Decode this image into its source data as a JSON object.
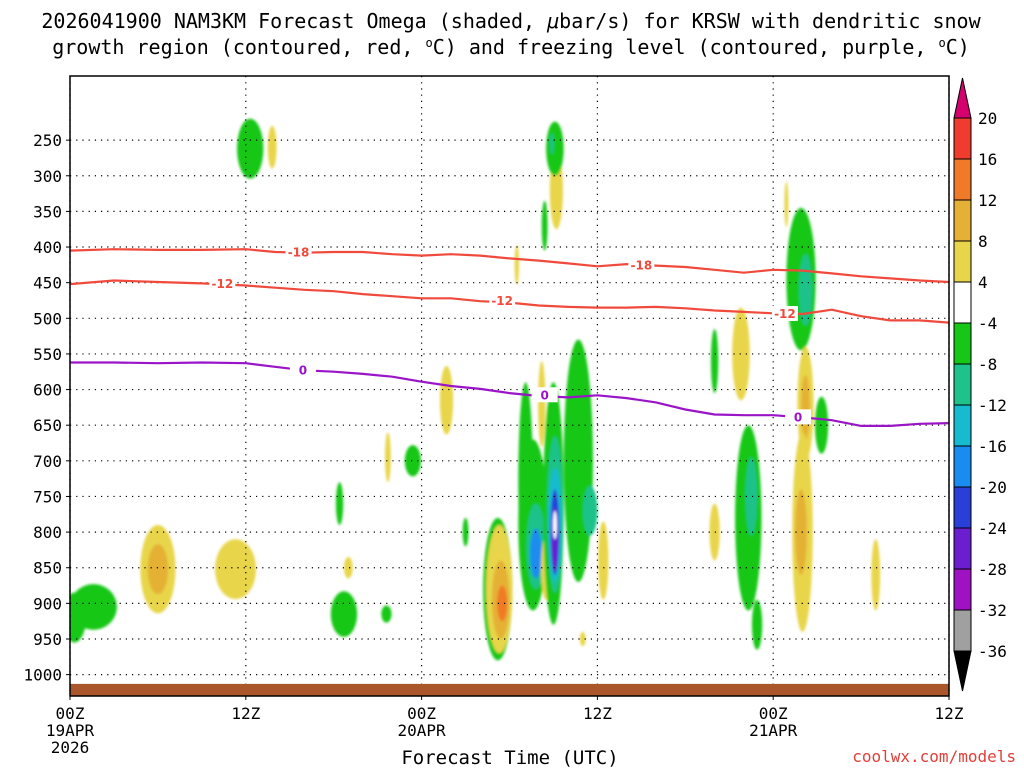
{
  "chart_data": {
    "type": "heatmap",
    "title": "2026041900 NAM3KM Forecast Omega (shaded, μbar/s) for KRSW with dendritic snow growth region (contoured, red, °C) and freezing level (contoured, purple, °C)",
    "title_lines": [
      [
        "2026041900 NAM3KM Forecast Omega (shaded, ",
        "μ",
        "bar/s) for KRSW with dendritic snow"
      ],
      [
        "growth region (contoured, red, ",
        "o",
        "C) and freezing level (contoured, purple, ",
        "o",
        "C)"
      ]
    ],
    "xlabel": "Forecast Time (UTC)",
    "ylabel": "",
    "xlim": [
      0,
      60
    ],
    "ylim": [
      1030,
      160
    ],
    "x_ticks": [
      {
        "hour": 0,
        "lines": [
          "00Z",
          "19APR",
          "2026"
        ]
      },
      {
        "hour": 12,
        "lines": [
          "12Z"
        ]
      },
      {
        "hour": 24,
        "lines": [
          "00Z",
          "20APR"
        ]
      },
      {
        "hour": 36,
        "lines": [
          "12Z"
        ]
      },
      {
        "hour": 48,
        "lines": [
          "00Z",
          "21APR"
        ]
      },
      {
        "hour": 60,
        "lines": [
          "12Z"
        ]
      }
    ],
    "y_ticks": [
      250,
      300,
      350,
      400,
      450,
      500,
      550,
      600,
      650,
      700,
      750,
      800,
      850,
      900,
      950,
      1000
    ],
    "grid": true,
    "ground_pressure": 1013,
    "colorbar": {
      "levels": [
        20,
        16,
        12,
        8,
        4,
        -4,
        -8,
        -12,
        -16,
        -20,
        -24,
        -28,
        -32,
        -36
      ],
      "colors": [
        "#d3006e",
        "#f03c2e",
        "#f07a28",
        "#e4b136",
        "#e8d54a",
        "#ffffff",
        "#16c718",
        "#1ec28a",
        "#16bbd0",
        "#1a8cf0",
        "#2a3fd8",
        "#6a1ed0",
        "#9e12c4",
        "#a0a0a0",
        "#000000"
      ]
    },
    "series": [
      {
        "name": "-18",
        "color": "#f04a3c",
        "label": "-18",
        "x": [
          0,
          3,
          6,
          9,
          12,
          14,
          16,
          18,
          20,
          22,
          24,
          26,
          28,
          30,
          32,
          34,
          36,
          38,
          40,
          42,
          44,
          46,
          48,
          50,
          52,
          54,
          56,
          58,
          60
        ],
        "y": [
          405,
          403,
          404,
          404,
          403,
          407,
          408,
          407,
          407,
          410,
          412,
          410,
          412,
          416,
          419,
          423,
          427,
          424,
          426,
          428,
          432,
          436,
          432,
          433,
          437,
          441,
          444,
          447,
          449
        ],
        "label_at": [
          [
            15.6,
            408
          ],
          [
            39.0,
            426
          ]
        ]
      },
      {
        "name": "-12",
        "color": "#f04a3c",
        "label": "-12",
        "x": [
          0,
          3,
          6,
          9,
          12,
          14,
          16,
          18,
          20,
          22,
          24,
          26,
          28,
          30,
          32,
          34,
          36,
          38,
          40,
          42,
          44,
          46,
          48,
          50,
          52,
          54,
          56,
          58,
          60
        ],
        "y": [
          452,
          447,
          449,
          451,
          454,
          457,
          460,
          462,
          466,
          469,
          472,
          472,
          476,
          478,
          482,
          484,
          485,
          485,
          484,
          486,
          489,
          491,
          493,
          494,
          488,
          497,
          503,
          503,
          506
        ],
        "label_at": [
          [
            10.4,
            452
          ],
          [
            29.5,
            476
          ],
          [
            48.8,
            494
          ]
        ]
      },
      {
        "name": "0",
        "color": "#9a14c8",
        "label": "0",
        "x": [
          0,
          3,
          6,
          9,
          12,
          14,
          16,
          18,
          20,
          22,
          24,
          26,
          28,
          30,
          32,
          34,
          36,
          38,
          40,
          42,
          44,
          46,
          48,
          50,
          52,
          54,
          56,
          58,
          60
        ],
        "y": [
          562,
          562,
          563,
          562,
          563,
          568,
          573,
          575,
          578,
          582,
          589,
          595,
          599,
          605,
          609,
          611,
          608,
          612,
          618,
          628,
          635,
          636,
          636,
          639,
          643,
          651,
          651,
          648,
          647
        ],
        "label_at": [
          [
            15.9,
            573
          ],
          [
            32.4,
            608
          ],
          [
            49.7,
            639
          ]
        ]
      }
    ],
    "omega_regions": [
      {
        "x": 0.3,
        "p": 920,
        "rx": 0.8,
        "rp": 35,
        "value": -6
      },
      {
        "x": 1.6,
        "p": 905,
        "rx": 1.6,
        "rp": 32,
        "value": -6
      },
      {
        "x": 6.0,
        "p": 852,
        "rx": 1.2,
        "rp": 62,
        "value": 5
      },
      {
        "x": 6.0,
        "p": 852,
        "rx": 0.7,
        "rp": 35,
        "value": 9
      },
      {
        "x": 11.3,
        "p": 852,
        "rx": 1.4,
        "rp": 42,
        "value": 5
      },
      {
        "x": 12.3,
        "p": 262,
        "rx": 0.9,
        "rp": 42,
        "value": -6
      },
      {
        "x": 13.8,
        "p": 260,
        "rx": 0.3,
        "rp": 30,
        "value": 5
      },
      {
        "x": 18.4,
        "p": 760,
        "rx": 0.25,
        "rp": 30,
        "value": -6
      },
      {
        "x": 19.0,
        "p": 850,
        "rx": 0.3,
        "rp": 15,
        "value": 5
      },
      {
        "x": 18.7,
        "p": 915,
        "rx": 0.9,
        "rp": 32,
        "value": -6
      },
      {
        "x": 21.6,
        "p": 915,
        "rx": 0.35,
        "rp": 12,
        "value": -6
      },
      {
        "x": 21.7,
        "p": 695,
        "rx": 0.2,
        "rp": 35,
        "value": 5
      },
      {
        "x": 23.4,
        "p": 700,
        "rx": 0.55,
        "rp": 22,
        "value": -6
      },
      {
        "x": 25.7,
        "p": 615,
        "rx": 0.45,
        "rp": 48,
        "value": 5
      },
      {
        "x": 27.0,
        "p": 800,
        "rx": 0.2,
        "rp": 20,
        "value": -6
      },
      {
        "x": 29.2,
        "p": 880,
        "rx": 1.0,
        "rp": 100,
        "value": -6
      },
      {
        "x": 29.3,
        "p": 880,
        "rx": 0.9,
        "rp": 90,
        "value": 5
      },
      {
        "x": 29.4,
        "p": 895,
        "rx": 0.6,
        "rp": 55,
        "value": 9
      },
      {
        "x": 29.5,
        "p": 900,
        "rx": 0.35,
        "rp": 25,
        "value": 13
      },
      {
        "x": 30.5,
        "p": 425,
        "rx": 0.15,
        "rp": 28,
        "value": 5
      },
      {
        "x": 31.1,
        "p": 730,
        "rx": 0.5,
        "rp": 140,
        "value": -6
      },
      {
        "x": 31.6,
        "p": 790,
        "rx": 1.0,
        "rp": 120,
        "value": -6
      },
      {
        "x": 31.8,
        "p": 820,
        "rx": 0.65,
        "rp": 60,
        "value": -10
      },
      {
        "x": 31.8,
        "p": 830,
        "rx": 0.4,
        "rp": 35,
        "value": -18
      },
      {
        "x": 32.4,
        "p": 370,
        "rx": 0.2,
        "rp": 35,
        "value": -6
      },
      {
        "x": 32.2,
        "p": 620,
        "rx": 0.25,
        "rp": 60,
        "value": 5
      },
      {
        "x": 32.5,
        "p": 850,
        "rx": 0.35,
        "rp": 45,
        "value": 5
      },
      {
        "x": 33.2,
        "p": 320,
        "rx": 0.45,
        "rp": 55,
        "value": 5
      },
      {
        "x": 33.1,
        "p": 262,
        "rx": 0.6,
        "rp": 38,
        "value": -6
      },
      {
        "x": 32.9,
        "p": 255,
        "rx": 0.1,
        "rp": 15,
        "value": -10
      },
      {
        "x": 33.0,
        "p": 760,
        "rx": 0.7,
        "rp": 170,
        "value": -6
      },
      {
        "x": 33.1,
        "p": 775,
        "rx": 0.55,
        "rp": 110,
        "value": -10
      },
      {
        "x": 33.1,
        "p": 790,
        "rx": 0.45,
        "rp": 80,
        "value": -14
      },
      {
        "x": 33.1,
        "p": 800,
        "rx": 0.3,
        "rp": 60,
        "value": -22
      },
      {
        "x": 33.1,
        "p": 810,
        "rx": 0.2,
        "rp": 45,
        "value": -26
      },
      {
        "x": 33.1,
        "p": 790,
        "rx": 0.06,
        "rp": 20,
        "value": 2
      },
      {
        "x": 34.7,
        "p": 700,
        "rx": 1.0,
        "rp": 170,
        "value": -6
      },
      {
        "x": 35.5,
        "p": 770,
        "rx": 0.5,
        "rp": 35,
        "value": -10
      },
      {
        "x": 36.4,
        "p": 840,
        "rx": 0.35,
        "rp": 55,
        "value": 5
      },
      {
        "x": 35.0,
        "p": 950,
        "rx": 0.2,
        "rp": 10,
        "value": 5
      },
      {
        "x": 44.0,
        "p": 560,
        "rx": 0.25,
        "rp": 45,
        "value": -6
      },
      {
        "x": 44.0,
        "p": 800,
        "rx": 0.35,
        "rp": 40,
        "value": 5
      },
      {
        "x": 45.8,
        "p": 550,
        "rx": 0.6,
        "rp": 65,
        "value": 5
      },
      {
        "x": 46.3,
        "p": 780,
        "rx": 0.9,
        "rp": 130,
        "value": -6
      },
      {
        "x": 46.5,
        "p": 750,
        "rx": 0.4,
        "rp": 55,
        "value": -10
      },
      {
        "x": 46.9,
        "p": 930,
        "rx": 0.35,
        "rp": 35,
        "value": -6
      },
      {
        "x": 48.9,
        "p": 340,
        "rx": 0.1,
        "rp": 32,
        "value": 5
      },
      {
        "x": 49.9,
        "p": 445,
        "rx": 1.0,
        "rp": 100,
        "value": -6
      },
      {
        "x": 50.2,
        "p": 460,
        "rx": 0.45,
        "rp": 50,
        "value": -10
      },
      {
        "x": 50.2,
        "p": 620,
        "rx": 0.55,
        "rp": 80,
        "value": 5
      },
      {
        "x": 50.2,
        "p": 625,
        "rx": 0.3,
        "rp": 45,
        "value": 9
      },
      {
        "x": 50.0,
        "p": 800,
        "rx": 0.7,
        "rp": 140,
        "value": 5
      },
      {
        "x": 49.9,
        "p": 800,
        "rx": 0.4,
        "rp": 60,
        "value": 9
      },
      {
        "x": 51.3,
        "p": 650,
        "rx": 0.45,
        "rp": 40,
        "value": -6
      },
      {
        "x": 55.0,
        "p": 860,
        "rx": 0.3,
        "rp": 50,
        "value": 5
      }
    ]
  },
  "credit": "coolwx.com/models"
}
